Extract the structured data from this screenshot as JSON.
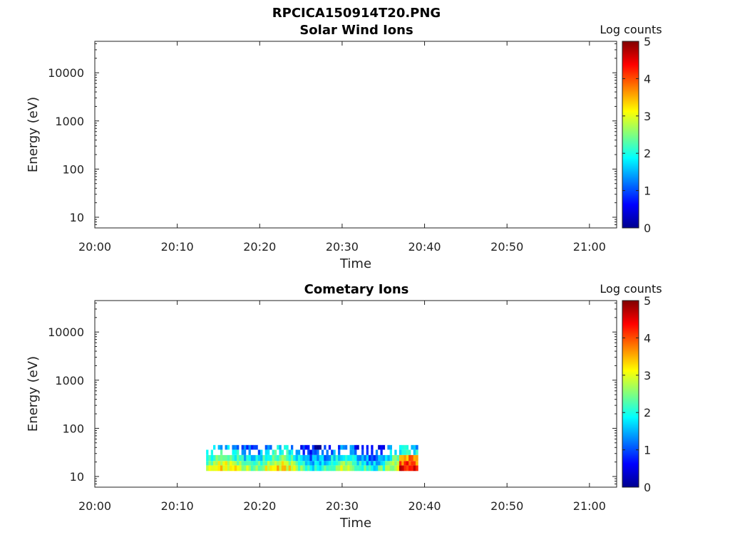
{
  "figure_title": "RPCICA150914T20.PNG",
  "chart_data": [
    {
      "type": "heatmap",
      "title": "Solar Wind Ions",
      "xlabel": "Time",
      "ylabel": "Energy (eV)",
      "x_tick_labels": [
        "20:00",
        "20:10",
        "20:20",
        "20:30",
        "20:40",
        "20:50",
        "21:00"
      ],
      "xlim_minutes": [
        0,
        63.3
      ],
      "y_scale": "log",
      "ylim": [
        6,
        45000
      ],
      "y_tick_values": [
        10,
        100,
        1000,
        10000
      ],
      "y_tick_labels": [
        "10",
        "100",
        "1000",
        "10000"
      ],
      "colorbar": {
        "label": "Log counts",
        "range": [
          0,
          5
        ],
        "tick_labels": [
          "0",
          "1",
          "2",
          "3",
          "4",
          "5"
        ],
        "colormap": "jet"
      },
      "data_present": false,
      "cells": []
    },
    {
      "type": "heatmap",
      "title": "Cometary Ions",
      "xlabel": "Time",
      "ylabel": "Energy (eV)",
      "x_tick_labels": [
        "20:00",
        "20:10",
        "20:20",
        "20:30",
        "20:40",
        "20:50",
        "21:00"
      ],
      "xlim_minutes": [
        0,
        63.3
      ],
      "y_scale": "log",
      "ylim": [
        6,
        45000
      ],
      "y_tick_values": [
        10,
        100,
        1000,
        10000
      ],
      "y_tick_labels": [
        "10",
        "100",
        "1000",
        "10000"
      ],
      "colorbar": {
        "label": "Log counts",
        "range": [
          0,
          5
        ],
        "tick_labels": [
          "0",
          "1",
          "2",
          "3",
          "4",
          "5"
        ],
        "colormap": "jet"
      },
      "data_present": true,
      "time_range_minutes": [
        13.5,
        39.2
      ],
      "energy_bins_eV": [
        13,
        17,
        21,
        28,
        36,
        45
      ],
      "time_bins_count": 90
    }
  ]
}
